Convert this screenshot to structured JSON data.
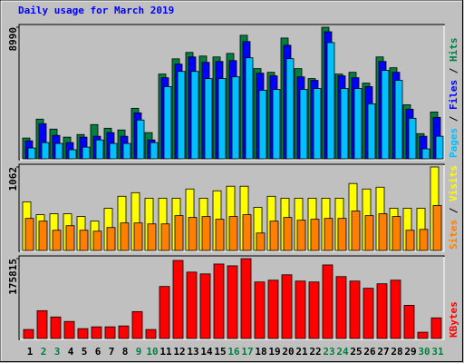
{
  "title": "Daily usage for March 2019",
  "chart_data": [
    {
      "type": "bar",
      "ylim": [
        0,
        8990
      ],
      "yticks": [
        8990
      ],
      "series": [
        {
          "name": "Pages",
          "color": "#00c0ff",
          "values": [
            740,
            1110,
            1050,
            620,
            800,
            1290,
            1050,
            1050,
            2650,
            1110,
            4930,
            5970,
            5970,
            5480,
            5480,
            5600,
            6900,
            4680,
            4740,
            6840,
            4740,
            4800,
            7940,
            4800,
            4800,
            3760,
            6040,
            5360,
            2770,
            680,
            1540
          ]
        },
        {
          "name": "Files",
          "color": "#0000ff",
          "values": [
            1230,
            2400,
            1600,
            1110,
            1480,
            1540,
            1790,
            1540,
            3140,
            1290,
            5540,
            6470,
            6960,
            6590,
            6650,
            6710,
            8010,
            5850,
            5670,
            7760,
            5600,
            5360,
            8680,
            5670,
            5540,
            4930,
            6650,
            5910,
            3390,
            1540,
            2830
          ]
        },
        {
          "name": "Hits",
          "color": "#008040",
          "values": [
            1420,
            2710,
            2030,
            1480,
            1660,
            2340,
            2090,
            1970,
            3450,
            1790,
            5790,
            6830,
            7270,
            7020,
            6960,
            7200,
            8440,
            6160,
            5910,
            8250,
            6160,
            5480,
            8990,
            5790,
            5910,
            5170,
            6960,
            6220,
            3690,
            1720,
            3200
          ]
        }
      ]
    },
    {
      "type": "bar",
      "ylim": [
        0,
        1062
      ],
      "yticks": [
        1062
      ],
      "series": [
        {
          "name": "Sites",
          "color": "#ff8000",
          "values": [
            408,
            373,
            257,
            315,
            257,
            245,
            292,
            350,
            350,
            338,
            338,
            443,
            420,
            432,
            397,
            432,
            455,
            222,
            373,
            420,
            385,
            397,
            408,
            408,
            502,
            443,
            467,
            432,
            257,
            268,
            572
          ]
        },
        {
          "name": "Visits",
          "color": "#ffff00",
          "values": [
            619,
            455,
            467,
            467,
            432,
            373,
            537,
            689,
            735,
            665,
            665,
            665,
            782,
            665,
            759,
            817,
            817,
            548,
            689,
            665,
            665,
            665,
            665,
            665,
            852,
            782,
            805,
            537,
            537,
            537,
            1062
          ]
        }
      ]
    },
    {
      "type": "bar",
      "ylim": [
        0,
        175815
      ],
      "yticks": [
        175815
      ],
      "categories": [
        "1",
        "2",
        "3",
        "4",
        "5",
        "6",
        "7",
        "8",
        "9",
        "10",
        "11",
        "12",
        "13",
        "14",
        "15",
        "16",
        "17",
        "18",
        "19",
        "20",
        "21",
        "22",
        "23",
        "24",
        "25",
        "26",
        "27",
        "28",
        "29",
        "30",
        "31"
      ],
      "category_colors": [
        "#000000",
        "#008040",
        "#008040",
        "#000000",
        "#000000",
        "#000000",
        "#000000",
        "#000000",
        "#008040",
        "#008040",
        "#000000",
        "#000000",
        "#000000",
        "#000000",
        "#000000",
        "#008040",
        "#008040",
        "#000000",
        "#000000",
        "#000000",
        "#000000",
        "#000000",
        "#008040",
        "#008040",
        "#000000",
        "#000000",
        "#000000",
        "#000000",
        "#000000",
        "#008040",
        "#008040"
      ],
      "series": [
        {
          "name": "KBytes",
          "color": "#ff0000",
          "values": [
            19750,
            61230,
            47400,
            37530,
            21730,
            25680,
            25680,
            27650,
            59250,
            19750,
            114550,
            171830,
            146150,
            142200,
            163930,
            159980,
            175815,
            124430,
            128380,
            140230,
            126400,
            124430,
            161950,
            136280,
            126400,
            110600,
            120480,
            128380,
            73080,
            13830,
            45430
          ]
        }
      ]
    }
  ]
}
